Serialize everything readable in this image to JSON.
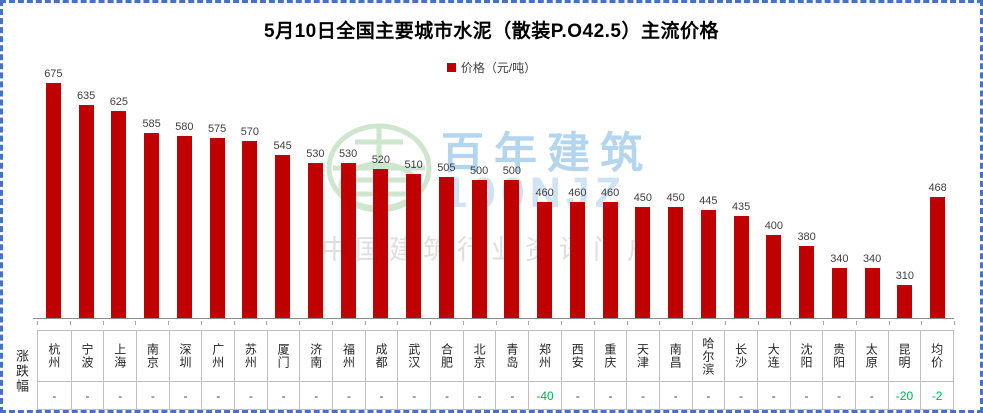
{
  "chart_data": {
    "type": "bar",
    "title": "5月10日全国主要城市水泥（散装P.O42.5）主流价格",
    "legend": [
      "价格（元/吨）"
    ],
    "legend_position": "top-center",
    "bar_color": "#C00000",
    "categories": [
      "杭州",
      "宁波",
      "上海",
      "南京",
      "深圳",
      "广州",
      "苏州",
      "厦门",
      "济南",
      "福州",
      "成都",
      "武汉",
      "合肥",
      "北京",
      "青岛",
      "郑州",
      "西安",
      "重庆",
      "天津",
      "南昌",
      "哈尔滨",
      "长沙",
      "大连",
      "沈阳",
      "贵阳",
      "太原",
      "昆明",
      "均价"
    ],
    "values": [
      675,
      635,
      625,
      585,
      580,
      575,
      570,
      545,
      530,
      530,
      520,
      510,
      505,
      500,
      500,
      460,
      460,
      460,
      450,
      450,
      445,
      435,
      400,
      380,
      340,
      340,
      310,
      468
    ],
    "data_labels": true,
    "y_axis_visible": false,
    "axis_min": 250,
    "axis_max": 675,
    "grid": false
  },
  "change_row": {
    "label": "涨跌幅",
    "values": [
      "-",
      "-",
      "-",
      "-",
      "-",
      "-",
      "-",
      "-",
      "-",
      "-",
      "-",
      "-",
      "-",
      "-",
      "-",
      "-40",
      "-",
      "-",
      "-",
      "-",
      "-",
      "-",
      "-",
      "-",
      "-",
      "-",
      "-20",
      "-2"
    ],
    "negative_color": "#00B050"
  },
  "watermark": {
    "brand": "百年建筑",
    "code": "100NJZ",
    "tagline": "中国建筑行业资讯门户"
  },
  "colors": {
    "bar": "#C00000",
    "frame_border": "#4472C4",
    "table_border": "#BFBFBF",
    "change_negative": "#00B050",
    "label_text": "#404040"
  }
}
